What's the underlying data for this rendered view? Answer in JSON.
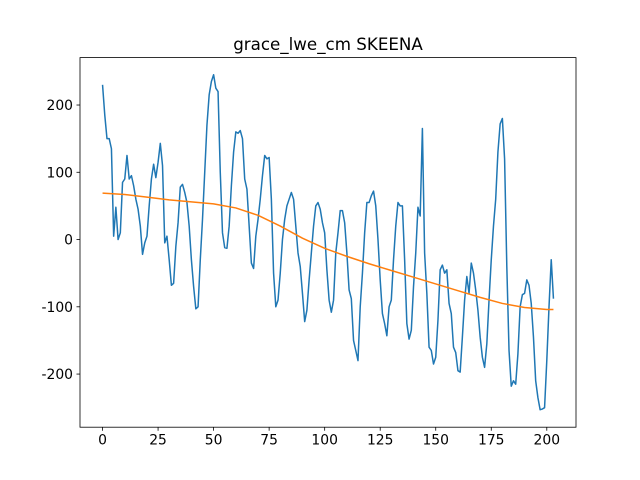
{
  "chart_data": {
    "type": "line",
    "title": "grace_lwe_cm SKEENA",
    "xlim": [
      -10.15,
      213.15
    ],
    "xticks": [
      0,
      25,
      50,
      75,
      100,
      125,
      150,
      175,
      200
    ],
    "ylim": [
      -279,
      270.5
    ],
    "yticks": [
      -200,
      -100,
      0,
      100,
      200
    ],
    "series": [
      {
        "color": "#1f77b4",
        "x": [
          0,
          1,
          2,
          3,
          4,
          5,
          6,
          7,
          8,
          9,
          10,
          11,
          12,
          13,
          14,
          15,
          16,
          17,
          18,
          19,
          20,
          21,
          22,
          23,
          24,
          25,
          26,
          27,
          28,
          29,
          30,
          31,
          32,
          33,
          34,
          35,
          36,
          37,
          38,
          39,
          40,
          41,
          42,
          43,
          44,
          45,
          46,
          47,
          48,
          49,
          50,
          51,
          52,
          53,
          54,
          55,
          56,
          57,
          58,
          59,
          60,
          61,
          62,
          63,
          64,
          65,
          66,
          67,
          68,
          69,
          70,
          71,
          72,
          73,
          74,
          75,
          76,
          77,
          78,
          79,
          80,
          81,
          82,
          83,
          84,
          85,
          86,
          87,
          88,
          89,
          90,
          91,
          92,
          93,
          94,
          95,
          96,
          97,
          98,
          99,
          100,
          101,
          102,
          103,
          104,
          105,
          106,
          107,
          108,
          109,
          110,
          111,
          112,
          113,
          114,
          115,
          116,
          117,
          118,
          119,
          120,
          121,
          122,
          123,
          124,
          125,
          126,
          127,
          128,
          129,
          130,
          131,
          132,
          133,
          134,
          135,
          136,
          137,
          138,
          139,
          140,
          141,
          142,
          143,
          144,
          145,
          146,
          147,
          148,
          149,
          150,
          151,
          152,
          153,
          154,
          155,
          156,
          157,
          158,
          159,
          160,
          161,
          162,
          163,
          164,
          165,
          166,
          167,
          168,
          169,
          170,
          171,
          172,
          173,
          174,
          175,
          176,
          177,
          178,
          179,
          180,
          181,
          182,
          183,
          184,
          185,
          186,
          187,
          188,
          189,
          190,
          191,
          192,
          193,
          194,
          195,
          196,
          197,
          198,
          199,
          200,
          201,
          202,
          203
        ],
        "values": [
          230,
          185,
          150,
          150,
          135,
          5,
          48,
          0,
          10,
          85,
          90,
          125,
          90,
          95,
          80,
          60,
          45,
          20,
          -22,
          -5,
          5,
          50,
          90,
          112,
          92,
          115,
          143,
          110,
          -5,
          5,
          -30,
          -68,
          -65,
          -10,
          25,
          78,
          82,
          70,
          55,
          20,
          -30,
          -70,
          -103,
          -100,
          -30,
          30,
          100,
          170,
          215,
          235,
          245,
          225,
          220,
          100,
          10,
          -12,
          -13,
          20,
          80,
          130,
          160,
          158,
          162,
          150,
          90,
          75,
          20,
          -35,
          -43,
          5,
          30,
          60,
          95,
          125,
          120,
          122,
          60,
          -50,
          -100,
          -90,
          -50,
          0,
          30,
          50,
          60,
          70,
          60,
          20,
          -20,
          -40,
          -80,
          -122,
          -105,
          -60,
          -20,
          20,
          50,
          55,
          45,
          25,
          10,
          -45,
          -90,
          -108,
          -90,
          -20,
          10,
          43,
          43,
          25,
          -20,
          -75,
          -88,
          -150,
          -165,
          -180,
          -100,
          -50,
          10,
          55,
          55,
          65,
          72,
          50,
          0,
          -60,
          -110,
          -125,
          -143,
          -100,
          -90,
          -30,
          20,
          55,
          50,
          50,
          -30,
          -125,
          -148,
          -135,
          -70,
          -20,
          48,
          35,
          165,
          -20,
          -80,
          -160,
          -165,
          -185,
          -175,
          -120,
          -45,
          -38,
          -50,
          -45,
          -95,
          -110,
          -160,
          -168,
          -195,
          -197,
          -145,
          -90,
          -55,
          -80,
          -35,
          -50,
          -75,
          -105,
          -145,
          -175,
          -190,
          -155,
          -90,
          -30,
          20,
          60,
          130,
          172,
          180,
          120,
          -40,
          -165,
          -218,
          -210,
          -215,
          -170,
          -100,
          -82,
          -80,
          -60,
          -68,
          -95,
          -145,
          -210,
          -235,
          -253,
          -252,
          -250,
          -180,
          -100,
          -30,
          -88
        ]
      },
      {
        "color": "#ff7f0e",
        "x": [
          0,
          10,
          20,
          30,
          40,
          50,
          60,
          70,
          80,
          90,
          100,
          110,
          120,
          130,
          140,
          150,
          160,
          170,
          180,
          190,
          200,
          203
        ],
        "values": [
          69,
          67,
          63,
          59,
          56,
          53,
          47,
          36,
          20,
          2,
          -13,
          -25,
          -36,
          -46,
          -56,
          -66,
          -76,
          -86,
          -95,
          -101,
          -104,
          -104
        ]
      }
    ]
  }
}
